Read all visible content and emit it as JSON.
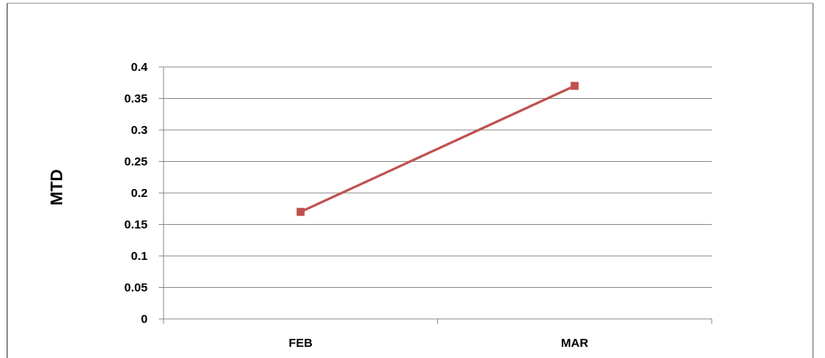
{
  "chart_data": {
    "type": "line",
    "categories": [
      "FEB",
      "MAR"
    ],
    "series": [
      {
        "values": [
          0.17,
          0.37
        ],
        "color": "#c0504d"
      }
    ],
    "title": "",
    "xlabel": "",
    "ylabel": "MTD",
    "ylim": [
      0,
      0.4
    ],
    "yticks": [
      "0",
      "0.05",
      "0.1",
      "0.15",
      "0.2",
      "0.25",
      "0.3",
      "0.35",
      "0.4"
    ],
    "grid": true,
    "legend": "none",
    "colors": {
      "gridline": "#8c8c8c",
      "axis": "#8c8c8c",
      "frame": "#8c8c8c"
    }
  }
}
